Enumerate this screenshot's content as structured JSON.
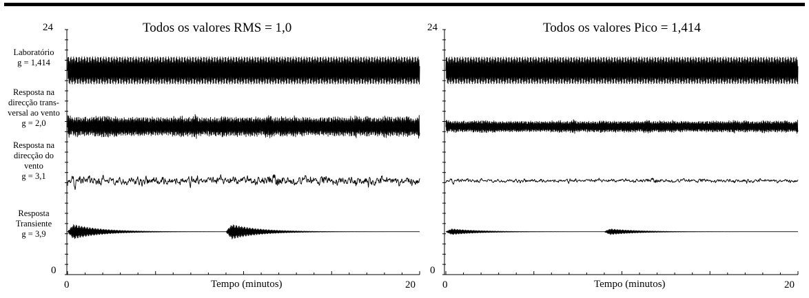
{
  "chart_data": [
    {
      "type": "line",
      "title": "Todos os valores RMS = 1,0",
      "xlabel": "Tempo (minutos)",
      "ylabel": "",
      "xlim": [
        0,
        20
      ],
      "ylim": [
        0,
        24
      ],
      "x_ticks": [
        "0",
        "20"
      ],
      "y_ticks": [
        "0",
        "24"
      ],
      "normalization": "rms",
      "grid": false,
      "series": [
        {
          "name": "Laboratório",
          "peak_factor": "g = 1,414",
          "kind": "sine",
          "baseline": 20.0,
          "rms": 1.0
        },
        {
          "name": "Resposta na direcção trans-versal ao vento",
          "peak_factor": "g = 2,0",
          "kind": "narrowband",
          "baseline": 14.5,
          "rms": 1.0
        },
        {
          "name": "Resposta na direcção do vento",
          "peak_factor": "g = 3,1",
          "kind": "broadband",
          "baseline": 9.2,
          "rms": 1.0
        },
        {
          "name": "Resposta Transiente",
          "peak_factor": "g = 3,9",
          "kind": "transient",
          "baseline": 4.2,
          "rms": 1.0,
          "impulse_times": [
            0,
            9
          ]
        }
      ]
    },
    {
      "type": "line",
      "title": "Todos os valores Pico = 1,414",
      "xlabel": "Tempo (minutos)",
      "ylabel": "",
      "xlim": [
        0,
        20
      ],
      "ylim": [
        0,
        24
      ],
      "x_ticks": [
        "0",
        "20"
      ],
      "y_ticks": [
        "0",
        "24"
      ],
      "normalization": "peak",
      "grid": false,
      "series": [
        {
          "name": "Laboratório",
          "peak_factor": "g = 1,414",
          "kind": "sine",
          "baseline": 20.0,
          "peak": 1.414
        },
        {
          "name": "Resposta na direcção trans-versal ao vento",
          "peak_factor": "g = 2,0",
          "kind": "narrowband",
          "baseline": 14.5,
          "peak": 1.414
        },
        {
          "name": "Resposta na direcção do vento",
          "peak_factor": "g = 3,1",
          "kind": "broadband",
          "baseline": 9.2,
          "peak": 1.414
        },
        {
          "name": "Resposta Transiente",
          "peak_factor": "g = 3,9",
          "kind": "transient",
          "baseline": 4.2,
          "peak": 1.414,
          "impulse_times": [
            0,
            9
          ]
        }
      ]
    }
  ],
  "row_labels": [
    {
      "lines": [
        "Laboratório",
        "g = 1,414"
      ]
    },
    {
      "lines": [
        "Resposta na",
        "direcção trans-",
        "versal ao vento",
        "g = 2,0"
      ]
    },
    {
      "lines": [
        "Resposta na",
        "direcção do",
        "vento",
        "g = 3,1"
      ]
    },
    {
      "lines": [
        "Resposta",
        "Transiente",
        "g = 3,9"
      ]
    }
  ],
  "colors": {
    "ink": "#000000",
    "background": "#ffffff"
  }
}
